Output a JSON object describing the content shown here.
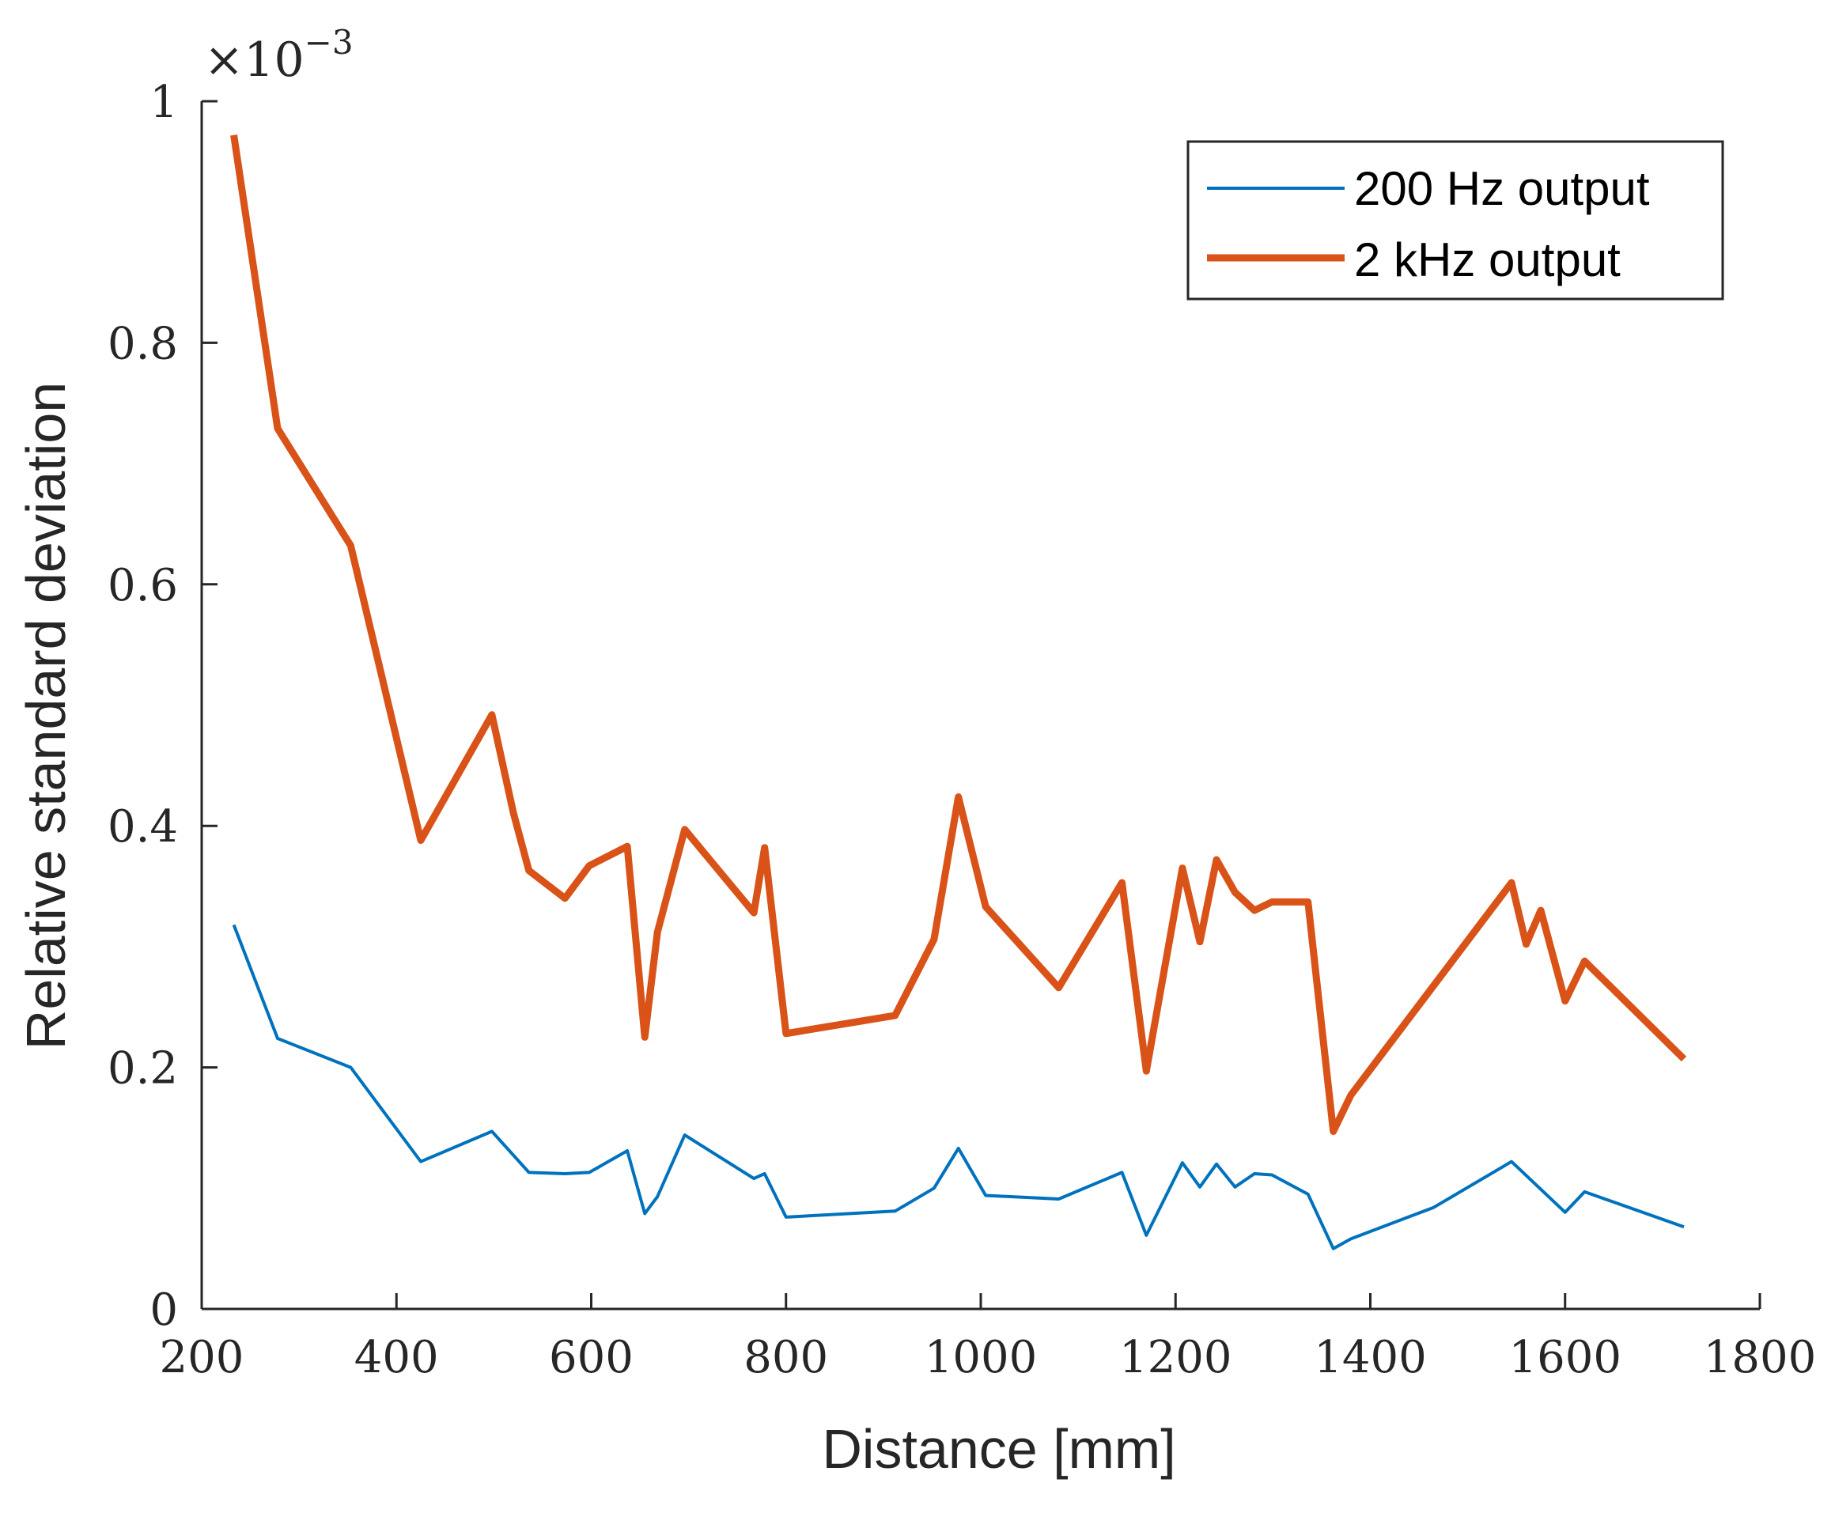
{
  "chart_data": {
    "type": "line",
    "title": "",
    "xlabel": "Distance [mm]",
    "ylabel": "Relative standard deviation",
    "xlim": [
      200,
      1800
    ],
    "ylim": [
      0,
      1
    ],
    "y_exponent_base": "×10",
    "y_exponent_power": "−3",
    "xticks": [
      200,
      400,
      600,
      800,
      1000,
      1200,
      1400,
      1600,
      1800
    ],
    "xtick_labels": [
      "200",
      "400",
      "600",
      "800",
      "1000",
      "1200",
      "1400",
      "1600",
      "1800"
    ],
    "yticks": [
      0,
      0.2,
      0.4,
      0.6,
      0.8,
      1
    ],
    "ytick_labels": [
      "0",
      "0.2",
      "0.4",
      "0.6",
      "0.8",
      "1"
    ],
    "grid": false,
    "legend_position": "top-right",
    "series": [
      {
        "name": "200 Hz output",
        "color": "#0072BD",
        "line_width": "thin",
        "x": [
          233,
          278,
          353,
          425,
          498,
          536,
          573,
          598,
          637,
          655,
          668,
          696,
          767,
          778,
          800,
          912,
          952,
          977,
          1005,
          1080,
          1145,
          1170,
          1207,
          1225,
          1242,
          1261,
          1281,
          1299,
          1336,
          1362,
          1380,
          1465,
          1545,
          1600,
          1620,
          1722
        ],
        "y": [
          0.318,
          0.224,
          0.2,
          0.122,
          0.147,
          0.113,
          0.112,
          0.113,
          0.131,
          0.079,
          0.093,
          0.144,
          0.108,
          0.112,
          0.076,
          0.081,
          0.1,
          0.133,
          0.094,
          0.091,
          0.113,
          0.061,
          0.121,
          0.101,
          0.12,
          0.101,
          0.112,
          0.111,
          0.095,
          0.05,
          0.058,
          0.084,
          0.122,
          0.08,
          0.097,
          0.068
        ]
      },
      {
        "name": "2 kHz output",
        "color": "#D95319",
        "line_width": "thick",
        "x": [
          233,
          278,
          353,
          425,
          498,
          520,
          536,
          573,
          598,
          637,
          655,
          668,
          696,
          767,
          778,
          800,
          912,
          952,
          977,
          1005,
          1080,
          1145,
          1170,
          1207,
          1225,
          1242,
          1261,
          1281,
          1299,
          1336,
          1362,
          1380,
          1545,
          1560,
          1575,
          1600,
          1620,
          1722
        ],
        "y": [
          0.972,
          0.729,
          0.632,
          0.388,
          0.492,
          0.411,
          0.363,
          0.34,
          0.367,
          0.383,
          0.225,
          0.312,
          0.397,
          0.328,
          0.382,
          0.228,
          0.243,
          0.306,
          0.424,
          0.333,
          0.266,
          0.353,
          0.197,
          0.365,
          0.304,
          0.372,
          0.345,
          0.33,
          0.337,
          0.337,
          0.147,
          0.177,
          0.353,
          0.302,
          0.33,
          0.255,
          0.288,
          0.207
        ]
      }
    ]
  }
}
